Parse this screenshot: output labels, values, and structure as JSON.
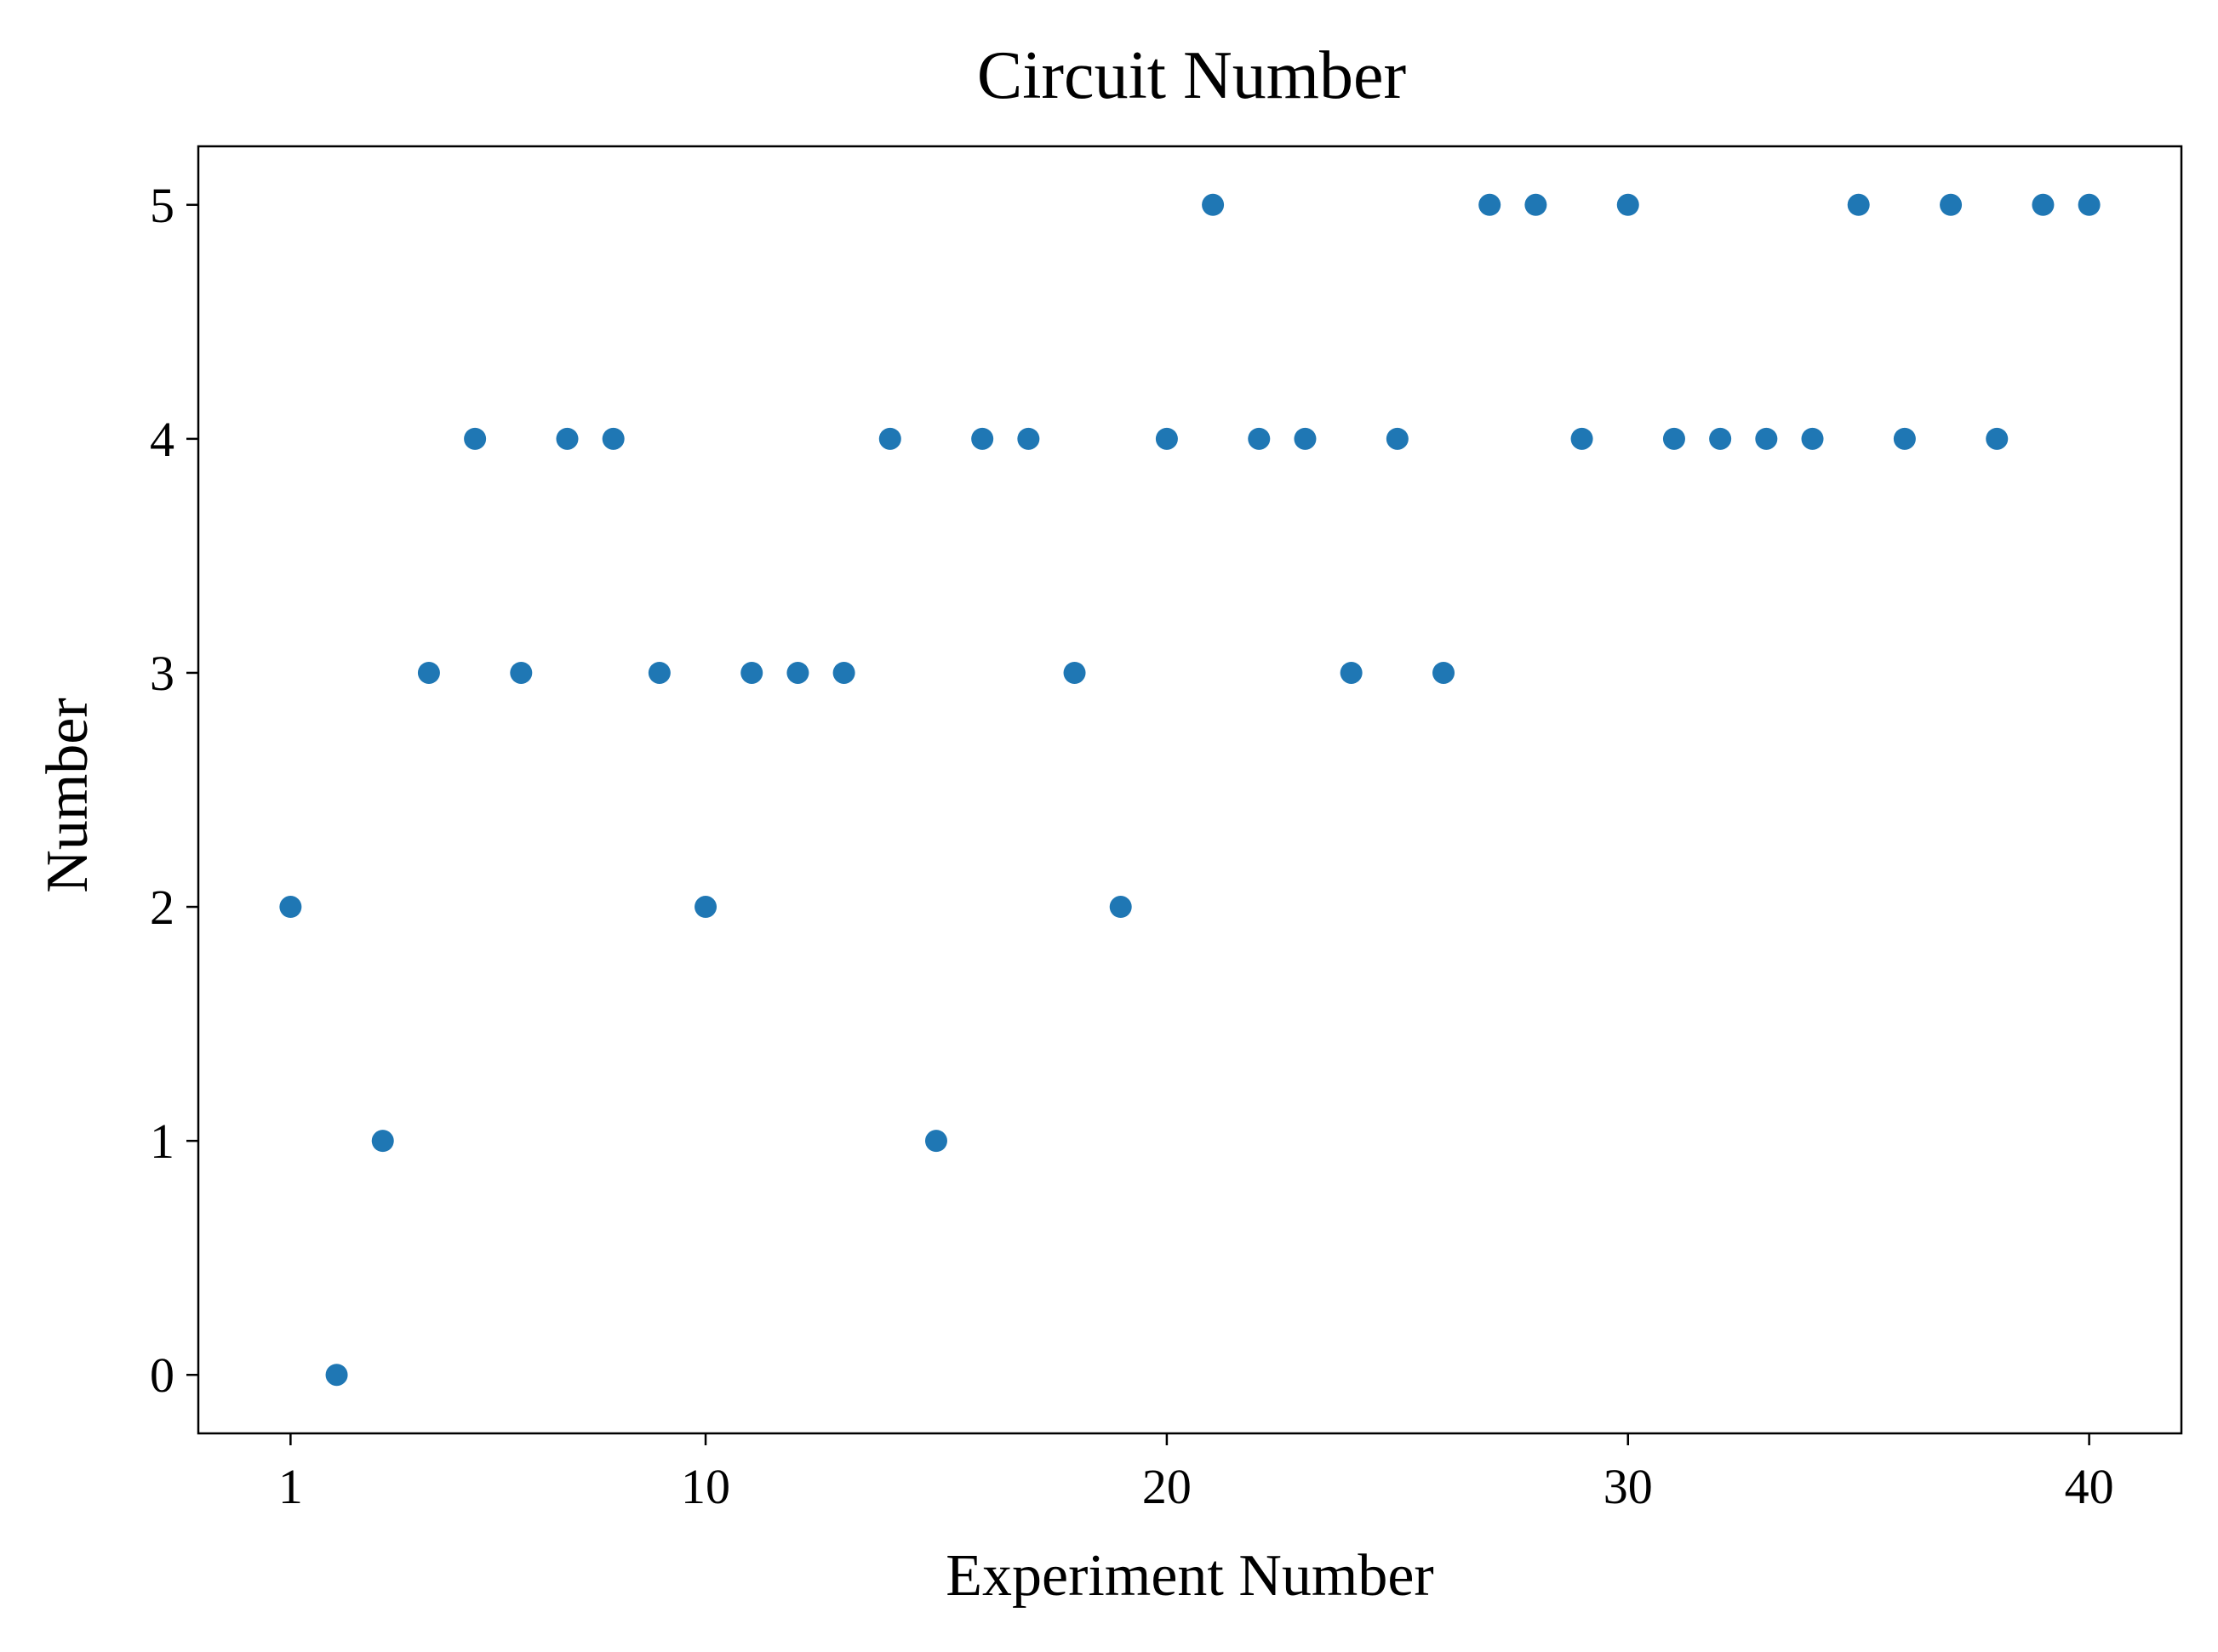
{
  "chart_data": {
    "type": "scatter",
    "title": "Circuit Number",
    "xlabel": "Experiment Number",
    "ylabel": "Number",
    "xlim": [
      -1,
      42
    ],
    "ylim": [
      -0.25,
      5.25
    ],
    "xticks": [
      1,
      10,
      20,
      30,
      40
    ],
    "yticks": [
      0,
      1,
      2,
      3,
      4,
      5
    ],
    "grid": false,
    "color": "#1f77b4",
    "x": [
      1,
      2,
      3,
      4,
      5,
      6,
      7,
      8,
      9,
      10,
      11,
      12,
      13,
      14,
      15,
      16,
      17,
      18,
      19,
      20,
      21,
      22,
      23,
      24,
      25,
      26,
      27,
      28,
      29,
      30,
      31,
      32,
      33,
      34,
      35,
      36,
      37,
      38,
      39,
      40
    ],
    "y": [
      2,
      0,
      1,
      3,
      4,
      3,
      4,
      4,
      3,
      2,
      3,
      3,
      3,
      4,
      1,
      4,
      4,
      3,
      2,
      4,
      5,
      4,
      4,
      3,
      4,
      3,
      5,
      5,
      4,
      5,
      4,
      4,
      4,
      4,
      5,
      4,
      5,
      4,
      5,
      5
    ]
  }
}
